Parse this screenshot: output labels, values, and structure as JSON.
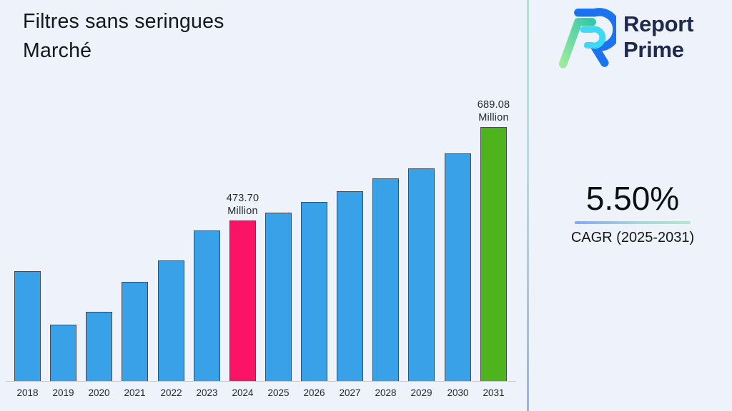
{
  "header": {
    "title": "Filtres sans seringues Marché"
  },
  "brand": {
    "line1": "Report",
    "line2": "Prime",
    "logo_colors": {
      "blue": "#1b74ee",
      "cyan": "#3fd8f5",
      "green_from": "#9dea9e",
      "green_to": "#35c8aa"
    }
  },
  "kpi": {
    "value": "5.50%",
    "label": "CAGR (2025-2031)"
  },
  "accents": {
    "underline_from": "#83a9f1",
    "underline_to": "#b2e9c5",
    "divider_from": "#9dead0",
    "divider_to": "#8fb3f1"
  },
  "chart_data": {
    "type": "bar",
    "title": "Filtres sans seringues Marché",
    "unit": "Million",
    "categories": [
      "2018",
      "2019",
      "2020",
      "2021",
      "2022",
      "2023",
      "2024",
      "2025",
      "2026",
      "2027",
      "2028",
      "2029",
      "2030",
      "2031"
    ],
    "values": [
      357,
      234,
      264,
      333,
      382,
      450,
      473.7,
      492,
      516,
      541,
      570,
      594,
      628,
      689.08
    ],
    "labeled_values": {
      "2024": "473.70 Million",
      "2031": "689.08 Million"
    },
    "annotations": [
      {
        "category": "2024",
        "lines": [
          "473.70",
          "Million"
        ]
      },
      {
        "category": "2031",
        "lines": [
          "689.08",
          "Million"
        ]
      }
    ],
    "colors": {
      "default": "#38a1e8",
      "border": "#454a54",
      "highlights": {
        "2024": "#fa1465",
        "2031": "#4db41d"
      }
    },
    "xlabel": "",
    "ylabel": "",
    "ylim": [
      105,
      730
    ],
    "grid": false,
    "legend": false
  }
}
